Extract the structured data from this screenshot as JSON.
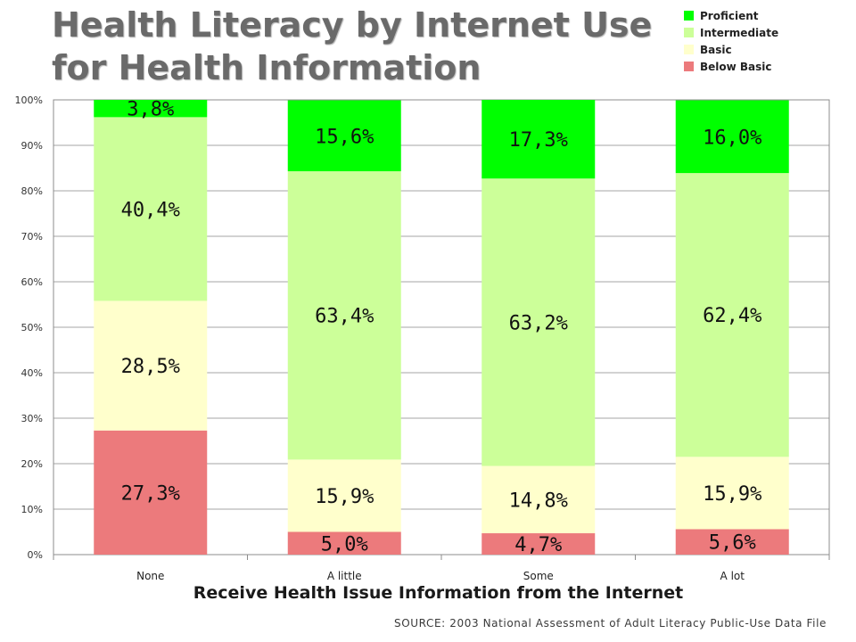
{
  "chart_data": {
    "type": "bar",
    "stacked": true,
    "title": "Health Literacy by Internet Use for Health Information",
    "title_lines": [
      "Health Literacy by Internet Use",
      "for Health Information"
    ],
    "xlabel": "Receive Health Issue Information from the Internet",
    "ylabel": "",
    "categories": [
      "None",
      "A little",
      "Some",
      "A lot"
    ],
    "ylim": [
      0,
      100
    ],
    "yticks": [
      "0%",
      "10%",
      "20%",
      "30%",
      "40%",
      "50%",
      "60%",
      "70%",
      "80%",
      "90%",
      "100%"
    ],
    "grid": true,
    "legend_position": "top-right",
    "series": [
      {
        "name": "Below Basic",
        "color": "#ec7a7c",
        "values": [
          27.3,
          5.0,
          4.7,
          5.6
        ],
        "labels": [
          "27,3%",
          "5,0%",
          "4,7%",
          "5,6%"
        ]
      },
      {
        "name": "Basic",
        "color": "#ffffcc",
        "values": [
          28.5,
          15.9,
          14.8,
          15.9
        ],
        "labels": [
          "28,5%",
          "15,9%",
          "14,8%",
          "15,9%"
        ]
      },
      {
        "name": "Intermediate",
        "color": "#ccff99",
        "values": [
          40.4,
          63.4,
          63.2,
          62.4
        ],
        "labels": [
          "40,4%",
          "63,4%",
          "63,2%",
          "62,4%"
        ]
      },
      {
        "name": "Proficient",
        "color": "#00ff00",
        "values": [
          3.8,
          15.6,
          17.3,
          16.0
        ],
        "labels": [
          "3,8%",
          "15,6%",
          "17,3%",
          "16,0%"
        ]
      }
    ],
    "legend_order": [
      "Proficient",
      "Intermediate",
      "Basic",
      "Below Basic"
    ]
  },
  "source": "SOURCE: 2003 National Assessment of Adult Literacy Public-Use Data File"
}
